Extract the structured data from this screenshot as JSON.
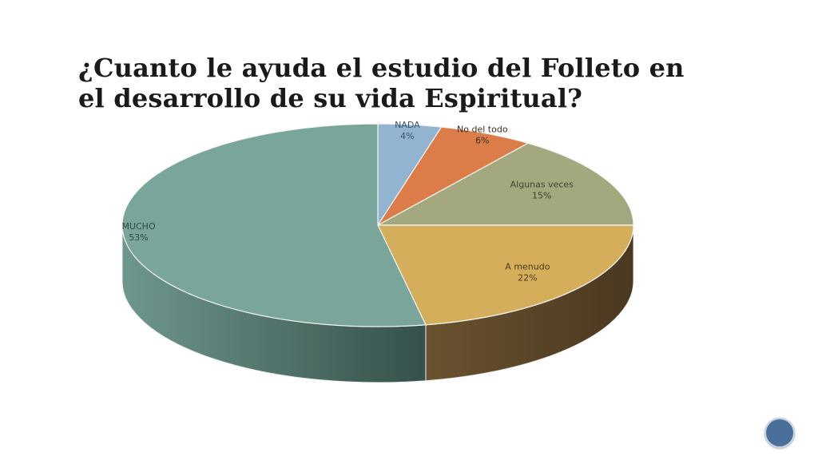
{
  "slide": {
    "title_line1": "¿Cuanto le ayuda el estudio del Folleto en",
    "title_line2": "el desarrollo de su vida Espiritual?",
    "slide_number": ""
  },
  "chart_data": {
    "type": "pie",
    "title": "¿Cuanto le ayuda el estudio del Folleto en el desarrollo de su vida Espiritual?",
    "slices": [
      {
        "label": "NADA",
        "value": 4,
        "display": "4%",
        "color": "#92b4d0",
        "side_color": "#6a8aa6",
        "label_color": "#3a4f66"
      },
      {
        "label": "No del todo",
        "value": 6,
        "display": "6%",
        "color": "#dc7c48",
        "side_color": "#a85a30",
        "label_color": "#3a3020"
      },
      {
        "label": "Algunas veces",
        "value": 15,
        "display": "15%",
        "color": "#a3a87e",
        "side_color": "#7a7e5c",
        "label_color": "#3e4430"
      },
      {
        "label": "A menudo",
        "value": 22,
        "display": "22%",
        "color": "#d4ae5a",
        "side_color": "#5a4526",
        "label_color": "#4a3a18"
      },
      {
        "label": "MUCHO",
        "value": 53,
        "display": "53%",
        "color": "#7aa59a",
        "side_color": "#4a6f66",
        "label_color": "#2f4a44"
      }
    ],
    "start_angle_deg": -90,
    "direction": "clockwise",
    "style": "3d",
    "legend": "none"
  }
}
